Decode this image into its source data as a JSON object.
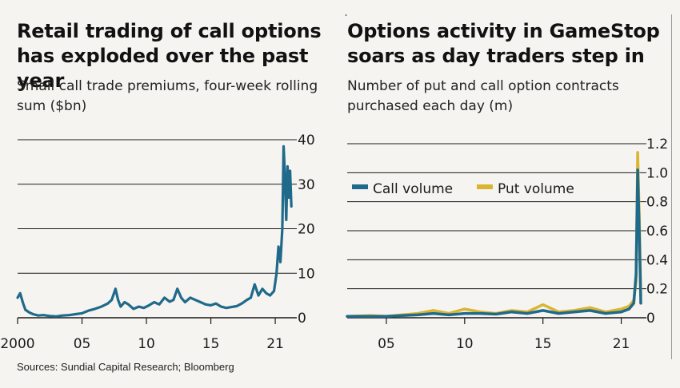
{
  "source": "Sources: Sundial Capital Research; Bloomberg",
  "colors": {
    "background": "#f6f4f1",
    "call": "#1f6a8a",
    "put": "#d9b533",
    "grid": "#1a1a1a"
  },
  "chart_data": [
    {
      "type": "area",
      "title": "Retail trading of call options has exploded over the past year",
      "subtitle": "Small call trade premiums, four-week rolling sum ($bn)",
      "ylim": [
        0,
        40
      ],
      "yticks": [
        0,
        10,
        20,
        30,
        40
      ],
      "xlim": [
        2000,
        2021.3
      ],
      "xticks": [
        2000,
        2005,
        2010,
        2015,
        2020
      ],
      "xtick_labels": [
        "2000",
        "05",
        "10",
        "15",
        "21"
      ],
      "y_axis_side": "right",
      "grid": true,
      "series": [
        {
          "color": "#1f6a8a",
          "x": [
            2000,
            2000.2,
            2000.4,
            2000.6,
            2000.9,
            2001.2,
            2001.6,
            2002,
            2002.5,
            2003,
            2003.5,
            2004,
            2004.5,
            2005,
            2005.5,
            2006,
            2006.5,
            2007,
            2007.3,
            2007.6,
            2007.8,
            2008,
            2008.3,
            2008.6,
            2009,
            2009.4,
            2009.8,
            2010.2,
            2010.6,
            2011,
            2011.4,
            2011.8,
            2012.1,
            2012.4,
            2012.7,
            2013,
            2013.4,
            2013.8,
            2014.2,
            2014.6,
            2015,
            2015.4,
            2015.8,
            2016.2,
            2016.6,
            2017,
            2017.4,
            2017.8,
            2018.1,
            2018.4,
            2018.7,
            2019,
            2019.3,
            2019.6,
            2019.9,
            2020.1,
            2020.25,
            2020.4,
            2020.55,
            2020.65,
            2020.75,
            2020.85,
            2020.95,
            2021.05,
            2021.15,
            2021.25
          ],
          "values": [
            4.5,
            5.5,
            3.5,
            1.8,
            1.2,
            0.8,
            0.5,
            0.6,
            0.4,
            0.3,
            0.5,
            0.6,
            0.8,
            1.0,
            1.6,
            2.0,
            2.5,
            3.2,
            4.0,
            6.5,
            4.0,
            2.5,
            3.5,
            3.0,
            2.0,
            2.5,
            2.2,
            2.8,
            3.5,
            3.0,
            4.5,
            3.6,
            4.0,
            6.5,
            4.5,
            3.5,
            4.5,
            4.0,
            3.5,
            3.0,
            2.8,
            3.2,
            2.5,
            2.2,
            2.4,
            2.6,
            3.2,
            4.0,
            4.5,
            7.5,
            5.0,
            6.5,
            5.5,
            5.0,
            6.0,
            10.0,
            16.0,
            12.5,
            20.0,
            38.5,
            32.0,
            22.0,
            34.0,
            27.0,
            33.0,
            25.0
          ]
        }
      ]
    },
    {
      "type": "area",
      "title": "Options activity in GameStop soars as day traders step in",
      "subtitle": "Number of put and call option contracts purchased each day (m)",
      "ylim": [
        0,
        1.2
      ],
      "yticks": [
        0,
        0.2,
        0.4,
        0.6,
        0.8,
        1.0,
        1.2
      ],
      "ytick_labels": [
        "0",
        "0.2",
        "0.4",
        "0.6",
        "0.8",
        "1.0",
        "1.2"
      ],
      "xlim": [
        2002.5,
        2021.3
      ],
      "xticks": [
        2005,
        2010,
        2015,
        2020
      ],
      "xtick_labels": [
        "05",
        "10",
        "15",
        "21"
      ],
      "y_axis_side": "right",
      "grid": true,
      "legend": {
        "position": "upper-left",
        "entries": [
          "Call volume",
          "Put volume"
        ]
      },
      "series": [
        {
          "name": "Call volume",
          "color": "#1f6a8a",
          "x": [
            2002.5,
            2004,
            2005,
            2006,
            2007,
            2008,
            2009,
            2010,
            2011,
            2012,
            2013,
            2014,
            2015,
            2016,
            2017,
            2018,
            2019,
            2020,
            2020.5,
            2020.8,
            2020.95,
            2021.05,
            2021.15,
            2021.25
          ],
          "values": [
            0.01,
            0.01,
            0.01,
            0.015,
            0.02,
            0.03,
            0.02,
            0.03,
            0.03,
            0.025,
            0.04,
            0.03,
            0.05,
            0.03,
            0.04,
            0.05,
            0.03,
            0.04,
            0.06,
            0.1,
            0.3,
            1.02,
            0.6,
            0.1
          ]
        },
        {
          "name": "Put volume",
          "color": "#d9b533",
          "x": [
            2002.5,
            2004,
            2005,
            2006,
            2007,
            2008,
            2009,
            2010,
            2011,
            2012,
            2013,
            2014,
            2015,
            2016,
            2017,
            2018,
            2019,
            2020,
            2020.5,
            2020.8,
            2020.95,
            2021.05,
            2021.15,
            2021.25
          ],
          "values": [
            0.01,
            0.015,
            0.01,
            0.02,
            0.03,
            0.05,
            0.03,
            0.06,
            0.04,
            0.03,
            0.05,
            0.04,
            0.09,
            0.04,
            0.05,
            0.07,
            0.04,
            0.06,
            0.08,
            0.12,
            0.25,
            1.14,
            0.7,
            0.15
          ]
        }
      ]
    }
  ]
}
